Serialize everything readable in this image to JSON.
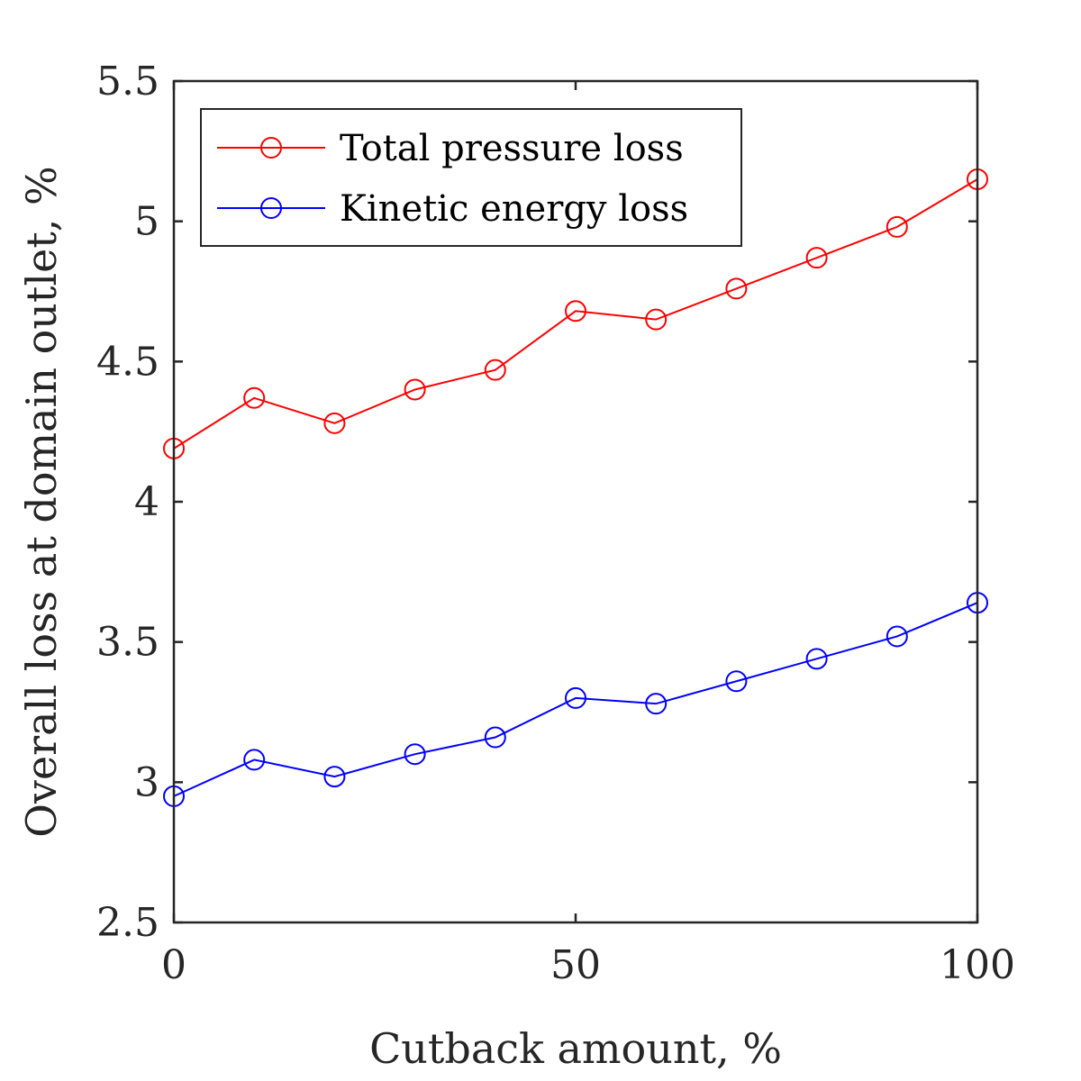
{
  "chart_data": {
    "type": "line",
    "xlabel": "Cutback amount, %",
    "ylabel": "Overall loss at domain outlet, %",
    "xlim": [
      0,
      100
    ],
    "ylim": [
      2.5,
      5.5
    ],
    "xticks": [
      0,
      50,
      100
    ],
    "xtick_labels": [
      "0",
      "50",
      "100"
    ],
    "yticks": [
      2.5,
      3,
      3.5,
      4,
      4.5,
      5,
      5.5
    ],
    "ytick_labels": [
      "2.5",
      "3",
      "3.5",
      "4",
      "4.5",
      "5",
      "5.5"
    ],
    "grid": false,
    "legend_position": "top-left",
    "x": [
      0,
      10,
      20,
      30,
      40,
      50,
      60,
      70,
      80,
      90,
      100
    ],
    "series": [
      {
        "name": "Total pressure loss",
        "color": "#ff0000",
        "marker": "circle",
        "values": [
          4.19,
          4.37,
          4.28,
          4.4,
          4.47,
          4.68,
          4.65,
          4.76,
          4.87,
          4.98,
          5.15
        ]
      },
      {
        "name": "Kinetic energy loss",
        "color": "#0000ff",
        "marker": "circle",
        "values": [
          2.95,
          3.08,
          3.02,
          3.1,
          3.16,
          3.3,
          3.28,
          3.36,
          3.44,
          3.52,
          3.64
        ]
      }
    ]
  }
}
